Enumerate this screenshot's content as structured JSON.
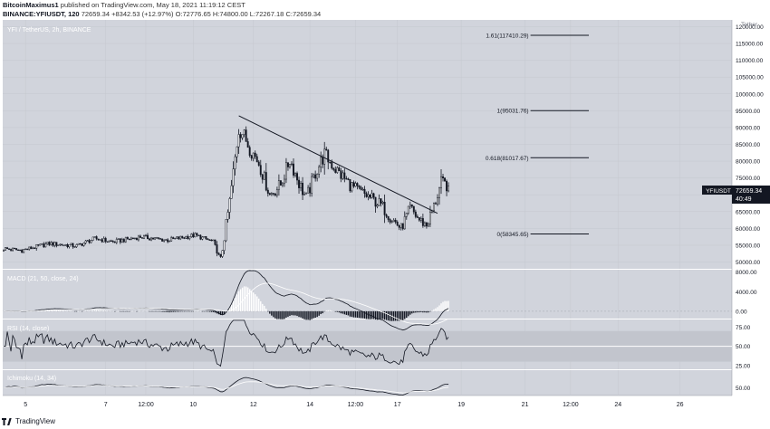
{
  "header": {
    "publisher": "BitcoinMaximus1",
    "published_text": "published on TradingView.com, May 18, 2021 11:19:12 CEST",
    "symbol_full": "BINANCE:YFIUSDT, 120",
    "last": "72659.34",
    "change": "+8342.53 (+12.97%)",
    "ohlc": {
      "o_label": "O:",
      "o": "72776.65",
      "h_label": "H:",
      "h": "74800.00",
      "l_label": "L:",
      "l": "72267.18",
      "c_label": "C:",
      "c": "72659.34"
    }
  },
  "pane_titles": {
    "main": "YFI / TetherUS, 2h, BINANCE",
    "macd": "MACD (21, 50, close, 24)",
    "rsi": "RSI (14, close)",
    "osc": "Ichimoku (14, 34)"
  },
  "currency": "Tether",
  "price_tag": {
    "symbol": "YFIUSDT",
    "price": "72659.34",
    "countdown": "40:49"
  },
  "fib_levels": [
    {
      "label": "1.61(117410.29)",
      "value": 117410.29
    },
    {
      "label": "1(95031.76)",
      "value": 95031.76
    },
    {
      "label": "0.618(81017.67)",
      "value": 81017.67
    },
    {
      "label": "0(58345.65)",
      "value": 58345.65
    }
  ],
  "trendline": {
    "from": {
      "bar": 129,
      "price": 93500
    },
    "to": {
      "bar": 238,
      "price": 64500
    }
  },
  "footer": {
    "brand": "TradingView"
  },
  "colors": {
    "background": "#d1d4dc",
    "candle": "#131722",
    "grid": "#c5c8cf",
    "fib_line": "#131722",
    "rsi_band": "#c2c5cd",
    "rsi_mid": "#ffffff",
    "hist_positive": "#ffffff",
    "hist_negative": "#131722"
  },
  "chart_data": {
    "type": "candlestick",
    "title": "YFI / TetherUS, 2h, BINANCE",
    "ylim": [
      48000,
      122000
    ],
    "y_ticks": [
      50000,
      55000,
      60000,
      65000,
      70000,
      75000,
      80000,
      85000,
      90000,
      95000,
      100000,
      105000,
      110000,
      115000,
      120000
    ],
    "y_ticks_shown": [
      {
        "label": "120000.00",
        "value": 120000
      },
      {
        "label": "115000.00",
        "value": 115000
      },
      {
        "label": "110000.00",
        "value": 110000
      },
      {
        "label": "105000.00",
        "value": 105000
      },
      {
        "label": "100000.00",
        "value": 100000
      },
      {
        "label": "95000.00",
        "value": 95000
      },
      {
        "label": "90000.00",
        "value": 90000
      },
      {
        "label": "85000.00",
        "value": 85000
      },
      {
        "label": "80000.00",
        "value": 80000
      },
      {
        "label": "75000.00",
        "value": 75000
      },
      {
        "label": "65000.00",
        "value": 65000
      },
      {
        "label": "60000.00",
        "value": 60000
      },
      {
        "label": "55000.00",
        "value": 55000
      },
      {
        "label": "50000.00",
        "value": 50000
      }
    ],
    "x_ticks": [
      {
        "label": "5",
        "bar": 12
      },
      {
        "label": "7",
        "bar": 56
      },
      {
        "label": "12:00",
        "bar": 78
      },
      {
        "label": "10",
        "bar": 104
      },
      {
        "label": "12",
        "bar": 137
      },
      {
        "label": "14",
        "bar": 168
      },
      {
        "label": "12:00",
        "bar": 193
      },
      {
        "label": "17",
        "bar": 216
      },
      {
        "label": "19",
        "bar": 251
      },
      {
        "label": "21",
        "bar": 286
      },
      {
        "label": "12:00",
        "bar": 311
      },
      {
        "label": "24",
        "bar": 337
      },
      {
        "label": "26",
        "bar": 371
      }
    ],
    "x_total_bars": 400,
    "anchors": [
      [
        0,
        54000
      ],
      [
        10,
        53500
      ],
      [
        25,
        55500
      ],
      [
        40,
        54800
      ],
      [
        50,
        57000
      ],
      [
        60,
        56000
      ],
      [
        75,
        57500
      ],
      [
        90,
        56500
      ],
      [
        105,
        58000
      ],
      [
        115,
        56000
      ],
      [
        119,
        50500
      ],
      [
        124,
        68000
      ],
      [
        129,
        89500
      ],
      [
        131,
        88500
      ],
      [
        135,
        84000
      ],
      [
        140,
        79500
      ],
      [
        146,
        70000
      ],
      [
        152,
        73000
      ],
      [
        157,
        80500
      ],
      [
        162,
        73500
      ],
      [
        166,
        69000
      ],
      [
        171,
        76500
      ],
      [
        176,
        82000
      ],
      [
        183,
        77000
      ],
      [
        192,
        72000
      ],
      [
        200,
        69500
      ],
      [
        207,
        67000
      ],
      [
        212,
        63500
      ],
      [
        218,
        60000
      ],
      [
        223,
        66000
      ],
      [
        228,
        62500
      ],
      [
        232,
        61000
      ],
      [
        236,
        66500
      ],
      [
        240,
        73500
      ],
      [
        244,
        72659
      ]
    ],
    "series_note": "",
    "macd": {
      "ylim": [
        -1500,
        8500
      ],
      "y_ticks": [
        {
          "label": "8000.00",
          "value": 8000
        },
        {
          "label": "4000.00",
          "value": 4000
        },
        {
          "label": "0.00",
          "value": 0
        }
      ]
    },
    "rsi": {
      "ylim": [
        20,
        85
      ],
      "band": [
        30,
        70
      ],
      "y_ticks": [
        {
          "label": "75.00",
          "value": 75
        },
        {
          "label": "50.00",
          "value": 50
        },
        {
          "label": "25.00",
          "value": 25
        }
      ]
    },
    "osc": {
      "ylim": [
        30,
        95
      ],
      "y_ticks": [
        {
          "label": "50.00",
          "value": 50
        }
      ]
    }
  }
}
